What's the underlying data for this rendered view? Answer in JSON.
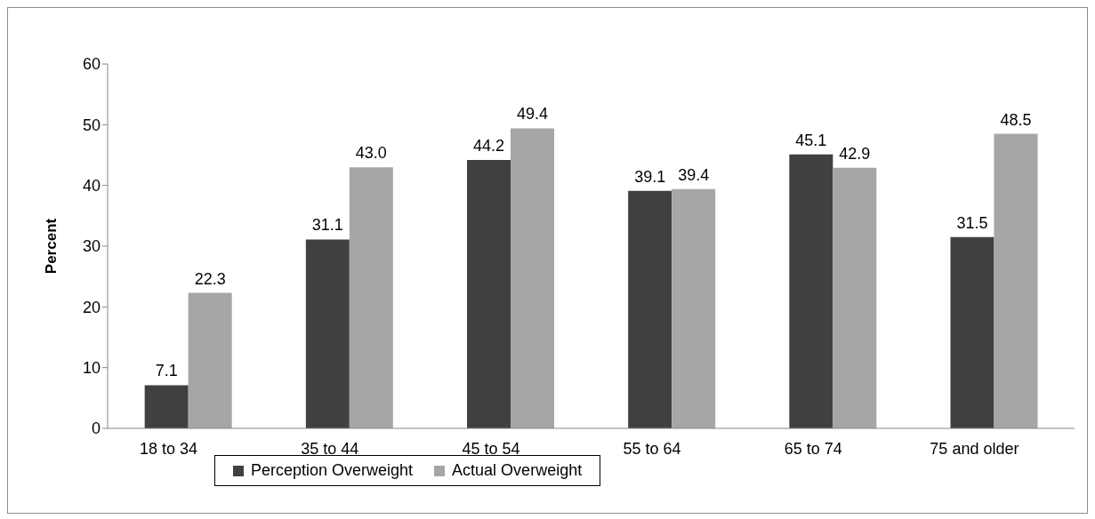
{
  "chart_data": {
    "type": "bar",
    "ylabel": "Percent",
    "categories": [
      "18 to 34",
      "35 to 44",
      "45 to 54",
      "55 to 64",
      "65 to 74",
      "75 and older"
    ],
    "series": [
      {
        "name": "Perception Overweight",
        "color": "#404040",
        "values": [
          7.1,
          31.1,
          44.2,
          39.1,
          45.1,
          31.5
        ],
        "value_labels": [
          "7.1",
          "31.1",
          "44.2",
          "39.1",
          "45.1",
          "31.5"
        ]
      },
      {
        "name": "Actual Overweight",
        "color": "#a6a6a6",
        "values": [
          22.3,
          43.0,
          49.4,
          39.4,
          42.9,
          48.5
        ],
        "value_labels": [
          "22.3",
          "43.0",
          "49.4",
          "39.4",
          "42.9",
          "48.5"
        ]
      }
    ],
    "ylim": [
      0,
      60
    ],
    "yticks": [
      0,
      10,
      20,
      30,
      40,
      50,
      60
    ],
    "legend": "bottom"
  }
}
